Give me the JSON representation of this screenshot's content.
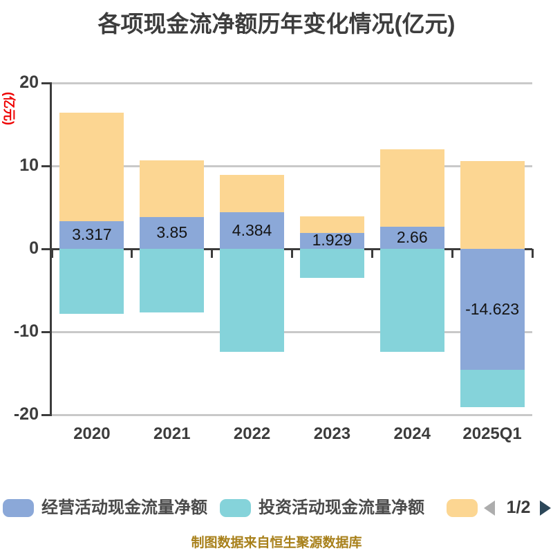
{
  "title": "各项现金流净额历年变化情况(亿元)",
  "y_axis": {
    "unit_label": "(亿元)",
    "unit_label_color": "#EE0000",
    "tick_labels": [
      "20",
      "10",
      "0",
      "-10",
      "-20"
    ]
  },
  "legend": {
    "items": [
      {
        "label": "经营活动现金流量净额",
        "color": "#8BA8D8"
      },
      {
        "label": "投资活动现金流量净额",
        "color": "#85D3DA"
      },
      {
        "label": "",
        "color": "#FCD692"
      }
    ],
    "pagination": {
      "page_label": "1/2",
      "prev_color": "#ADADAD",
      "next_color": "#2C4759"
    }
  },
  "footer": "制图数据来自恒生聚源数据库",
  "colors": {
    "axis": "#3C3C3C",
    "gridline": "#C9C9C9",
    "zero_line": "#3C3C3C",
    "bar_label_text": "#141414",
    "footer_text": "#A8801A"
  },
  "chart_data": {
    "type": "bar",
    "stacked": true,
    "title": "各项现金流净额历年变化情况(亿元)",
    "categories": [
      "2020",
      "2021",
      "2022",
      "2023",
      "2024",
      "2025Q1"
    ],
    "series": [
      {
        "name": "经营活动现金流量净额",
        "color": "#8BA8D8",
        "values": [
          3.317,
          3.85,
          4.384,
          1.929,
          2.66,
          -14.623
        ],
        "data_labels": [
          "3.317",
          "3.85",
          "4.384",
          "1.929",
          "2.66",
          "-14.623"
        ]
      },
      {
        "name": "投资活动现金流量净额",
        "color": "#85D3DA",
        "values": [
          -7.8,
          -7.7,
          -12.4,
          -3.5,
          -12.4,
          -4.5
        ]
      },
      {
        "name": "",
        "color": "#FCD692",
        "values": [
          13.1,
          6.8,
          4.5,
          2.0,
          9.3,
          10.6
        ]
      }
    ],
    "ylabel": "(亿元)",
    "ylim": [
      -20,
      20
    ],
    "yticks": [
      20,
      10,
      0,
      -10,
      -20
    ],
    "grid": true,
    "legend_position": "bottom"
  }
}
